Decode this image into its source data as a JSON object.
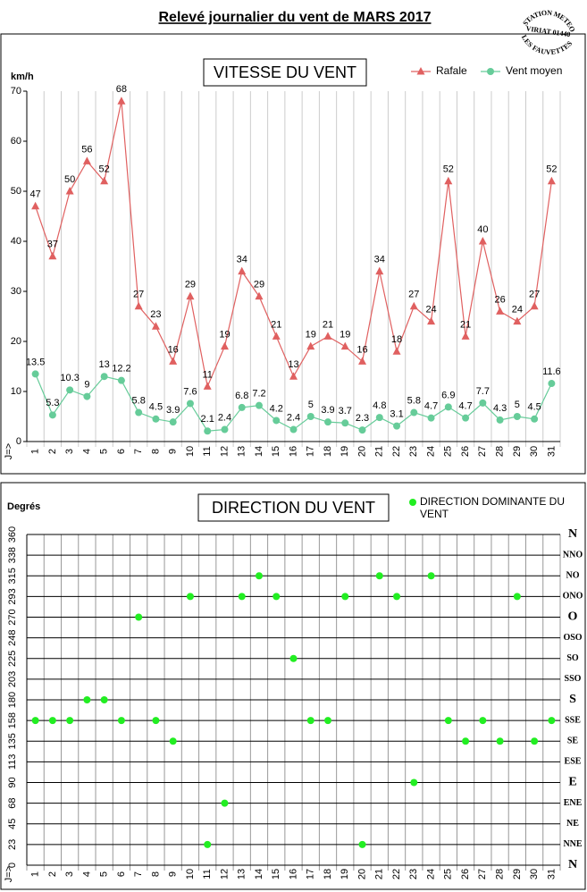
{
  "title": "Relevé journalier du vent de MARS 2017",
  "stamp": [
    "STATION METEO",
    "VIRIAT 01440",
    "LES FAUVETTES"
  ],
  "chart_data": [
    {
      "type": "line",
      "title": "VITESSE DU VENT",
      "y_label": "km/h",
      "x_label": "J=>",
      "categories": [
        "1",
        "2",
        "3",
        "4",
        "5",
        "6",
        "7",
        "8",
        "9",
        "10",
        "11",
        "12",
        "13",
        "14",
        "15",
        "16",
        "17",
        "18",
        "19",
        "20",
        "21",
        "22",
        "23",
        "24",
        "25",
        "26",
        "27",
        "28",
        "29",
        "30",
        "31"
      ],
      "ylim": [
        0,
        70
      ],
      "yticks": [
        0,
        10,
        20,
        30,
        40,
        50,
        60,
        70
      ],
      "grid": "vertical",
      "legend": "top-right",
      "series": [
        {
          "name": "Rafale",
          "color": "#e06060",
          "marker": "triangle",
          "values": [
            47,
            37,
            50,
            56,
            52,
            68,
            27,
            23,
            16,
            29,
            11,
            19,
            34,
            29,
            21,
            13,
            19,
            21,
            19,
            16,
            34,
            18,
            27,
            24,
            52,
            21,
            40,
            26,
            24,
            27,
            52
          ]
        },
        {
          "name": "Vent moyen",
          "color": "#66cc99",
          "marker": "circle",
          "values": [
            13.5,
            5.3,
            10.3,
            9,
            13,
            12.2,
            5.8,
            4.5,
            3.9,
            7.6,
            2.1,
            2.4,
            6.8,
            7.2,
            4.2,
            2.4,
            5,
            3.9,
            3.7,
            2.3,
            4.8,
            3.1,
            5.8,
            4.7,
            6.9,
            4.7,
            7.7,
            4.3,
            5,
            4.5,
            11.6
          ]
        }
      ]
    },
    {
      "type": "scatter",
      "title": "DIRECTION DU VENT",
      "y_label": "Degrés",
      "x_label": "J=>",
      "categories": [
        "1",
        "2",
        "3",
        "4",
        "5",
        "6",
        "7",
        "8",
        "9",
        "10",
        "11",
        "12",
        "13",
        "14",
        "15",
        "16",
        "17",
        "18",
        "19",
        "20",
        "21",
        "22",
        "23",
        "24",
        "25",
        "26",
        "27",
        "28",
        "29",
        "30",
        "31"
      ],
      "ylim": [
        0,
        360
      ],
      "yticks": [
        0,
        {
          "value": 22.5,
          "label": "23"
        },
        45,
        {
          "value": 67.5,
          "label": "68"
        },
        90,
        {
          "value": 112.5,
          "label": "113"
        },
        135,
        {
          "value": 157.5,
          "label": "158"
        },
        180,
        {
          "value": 202.5,
          "label": "203"
        },
        225,
        {
          "value": 247.5,
          "label": "248"
        },
        270,
        {
          "value": 292.5,
          "label": "293"
        },
        315,
        {
          "value": 337.5,
          "label": "338"
        },
        360
      ],
      "y2lim": [
        0,
        360
      ],
      "y2ticks": [
        {
          "value": 0,
          "label": "N"
        },
        {
          "value": 22.5,
          "label": "NNE"
        },
        {
          "value": 45,
          "label": "NE"
        },
        {
          "value": 67.5,
          "label": "ENE"
        },
        {
          "value": 90,
          "label": "E"
        },
        {
          "value": 112.5,
          "label": "ESE"
        },
        {
          "value": 135,
          "label": "SE"
        },
        {
          "value": 157.5,
          "label": "SSE"
        },
        {
          "value": 180,
          "label": "S"
        },
        {
          "value": 202.5,
          "label": "SSO"
        },
        {
          "value": 225,
          "label": "SO"
        },
        {
          "value": 247.5,
          "label": "OSO"
        },
        {
          "value": 270,
          "label": "O"
        },
        {
          "value": 292.5,
          "label": "ONO"
        },
        {
          "value": 315,
          "label": "NO"
        },
        {
          "value": 337.5,
          "label": "NNO"
        },
        {
          "value": 360,
          "label": "N"
        }
      ],
      "grid": "both",
      "legend": "top-right",
      "series": [
        {
          "name": "DIRECTION DOMINANTE DU VENT",
          "color": "#22ee22",
          "marker": "circle",
          "values": [
            157.5,
            157.5,
            157.5,
            180,
            180,
            157.5,
            270,
            157.5,
            135,
            292.5,
            22.5,
            67.5,
            292.5,
            315,
            292.5,
            225,
            157.5,
            157.5,
            292.5,
            22.5,
            315,
            292.5,
            90,
            315,
            157.5,
            135,
            157.5,
            135,
            292.5,
            135,
            157.5
          ]
        }
      ]
    }
  ]
}
